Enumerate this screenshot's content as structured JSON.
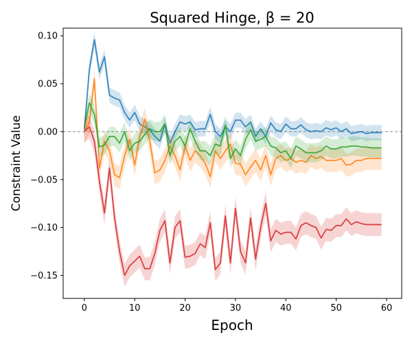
{
  "chart_data": {
    "type": "line",
    "title": "Squared Hinge, β =  20",
    "xlabel": "Epoch",
    "ylabel": "Constraint Value",
    "xlim": [
      -4.2,
      63.0
    ],
    "ylim": [
      -0.174,
      0.108
    ],
    "xticks": [
      0,
      10,
      20,
      30,
      40,
      50,
      60
    ],
    "yticks": [
      -0.15,
      -0.1,
      -0.05,
      0.0,
      0.05,
      0.1
    ],
    "ytick_labels": [
      "−0.15",
      "−0.10",
      "−0.05",
      "0.00",
      "0.05",
      "0.10"
    ],
    "reference_line": {
      "y": 0.0,
      "style": "dashed",
      "color": "#888888"
    },
    "grid": false,
    "legend": "none",
    "x": [
      0,
      1,
      2,
      3,
      4,
      5,
      6,
      7,
      8,
      9,
      10,
      11,
      12,
      13,
      14,
      15,
      16,
      17,
      18,
      19,
      20,
      21,
      22,
      23,
      24,
      25,
      26,
      27,
      28,
      29,
      30,
      31,
      32,
      33,
      34,
      35,
      36,
      37,
      38,
      39,
      40,
      41,
      42,
      43,
      44,
      45,
      46,
      47,
      48,
      49,
      50,
      51,
      52,
      53,
      54,
      55,
      56,
      57,
      58,
      59
    ],
    "series": [
      {
        "name": "series-blue",
        "color": "#1f77b4",
        "band_width": 0.008,
        "values": [
          0.002,
          0.065,
          0.096,
          0.062,
          0.078,
          0.038,
          0.035,
          0.033,
          0.02,
          0.012,
          0.02,
          0.008,
          0.005,
          0.002,
          -0.005,
          -0.01,
          0.008,
          -0.012,
          0.0,
          0.01,
          0.008,
          0.01,
          0.002,
          0.003,
          0.003,
          0.018,
          0.0,
          -0.005,
          0.005,
          0.0,
          0.012,
          0.012,
          0.005,
          0.01,
          -0.005,
          0.003,
          -0.005,
          0.009,
          0.002,
          0.0,
          0.008,
          0.003,
          0.003,
          0.007,
          0.002,
          0.0,
          0.001,
          0.0,
          0.004,
          0.002,
          0.004,
          0.0,
          0.003,
          -0.002,
          -0.001,
          0.0,
          -0.002,
          -0.001,
          -0.001,
          -0.001
        ]
      },
      {
        "name": "series-orange",
        "color": "#ff7f0e",
        "band_width": 0.012,
        "values": [
          0.0,
          0.01,
          0.055,
          -0.038,
          -0.01,
          -0.02,
          -0.045,
          -0.048,
          -0.025,
          -0.008,
          -0.035,
          -0.005,
          0.013,
          -0.01,
          -0.043,
          -0.04,
          -0.03,
          -0.015,
          -0.025,
          -0.04,
          -0.015,
          -0.03,
          -0.02,
          -0.025,
          -0.033,
          -0.047,
          -0.02,
          -0.028,
          -0.02,
          -0.013,
          -0.033,
          -0.034,
          -0.045,
          -0.037,
          -0.03,
          -0.04,
          -0.025,
          -0.045,
          -0.028,
          -0.025,
          -0.03,
          -0.028,
          -0.032,
          -0.03,
          -0.032,
          -0.025,
          -0.028,
          -0.026,
          -0.03,
          -0.03,
          -0.03,
          -0.028,
          -0.035,
          -0.034,
          -0.03,
          -0.03,
          -0.028,
          -0.028,
          -0.028,
          -0.028
        ]
      },
      {
        "name": "series-green",
        "color": "#2ca02c",
        "band_width": 0.01,
        "values": [
          0.005,
          0.03,
          0.018,
          -0.016,
          -0.014,
          -0.005,
          -0.005,
          -0.012,
          0.0,
          -0.02,
          -0.012,
          -0.01,
          -0.003,
          0.003,
          0.0,
          0.0,
          0.008,
          -0.025,
          -0.01,
          -0.005,
          -0.015,
          0.003,
          -0.01,
          -0.02,
          -0.02,
          -0.025,
          -0.013,
          -0.015,
          0.007,
          -0.028,
          -0.018,
          -0.025,
          -0.008,
          0.002,
          -0.01,
          -0.008,
          -0.005,
          -0.015,
          -0.017,
          -0.022,
          -0.02,
          -0.028,
          -0.015,
          -0.018,
          -0.022,
          -0.022,
          -0.022,
          -0.02,
          -0.015,
          -0.018,
          -0.018,
          -0.016,
          -0.016,
          -0.015,
          -0.015,
          -0.016,
          -0.016,
          -0.017,
          -0.017,
          -0.017
        ]
      },
      {
        "name": "series-red",
        "color": "#d62728",
        "band_width": 0.012,
        "values": [
          0.0,
          0.005,
          -0.01,
          -0.052,
          -0.085,
          -0.038,
          -0.09,
          -0.125,
          -0.15,
          -0.14,
          -0.135,
          -0.13,
          -0.143,
          -0.143,
          -0.127,
          -0.103,
          -0.093,
          -0.137,
          -0.1,
          -0.093,
          -0.131,
          -0.13,
          -0.127,
          -0.117,
          -0.121,
          -0.095,
          -0.144,
          -0.137,
          -0.088,
          -0.137,
          -0.08,
          -0.125,
          -0.137,
          -0.09,
          -0.133,
          -0.1,
          -0.075,
          -0.114,
          -0.103,
          -0.107,
          -0.105,
          -0.105,
          -0.112,
          -0.098,
          -0.095,
          -0.098,
          -0.1,
          -0.111,
          -0.102,
          -0.103,
          -0.098,
          -0.098,
          -0.091,
          -0.097,
          -0.094,
          -0.096,
          -0.097,
          -0.097,
          -0.097,
          -0.097
        ]
      }
    ]
  }
}
